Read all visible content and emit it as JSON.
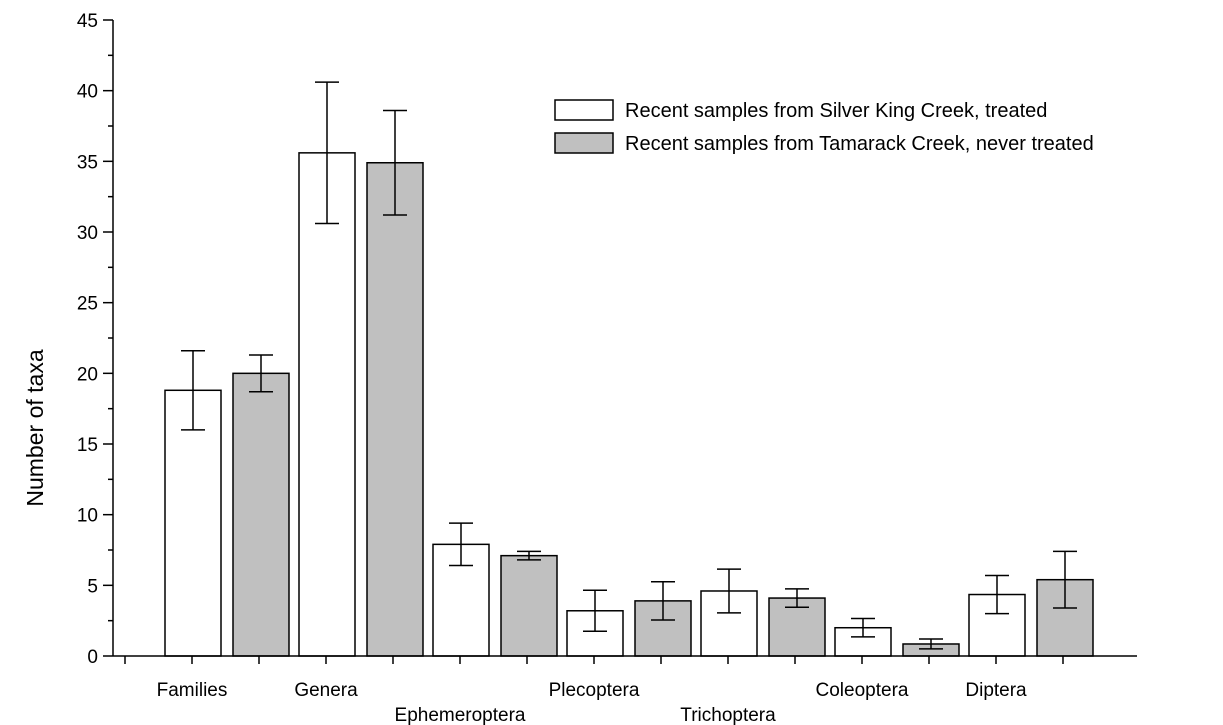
{
  "chart_data": {
    "type": "bar",
    "title": "",
    "xlabel": "",
    "ylabel": "Number of taxa",
    "ylim": [
      0,
      45
    ],
    "yticks": [
      0,
      5,
      10,
      15,
      20,
      25,
      30,
      35,
      40,
      45
    ],
    "grid": false,
    "legend_position": "top-right",
    "categories": [
      "Families",
      "Genera",
      "Ephemeroptera",
      "Plecoptera",
      "Trichoptera",
      "Coleoptera",
      "Diptera"
    ],
    "series": [
      {
        "name": "Recent samples from Silver King Creek, treated",
        "color": "#ffffff",
        "values": [
          18.8,
          35.6,
          7.9,
          3.2,
          4.6,
          2.0,
          4.35
        ],
        "error": [
          2.8,
          5.0,
          1.5,
          1.45,
          1.55,
          0.65,
          1.35
        ]
      },
      {
        "name": "Recent samples from Tamarack Creek, never treated",
        "color": "#c0c0c0",
        "values": [
          20.0,
          34.9,
          7.1,
          3.9,
          4.1,
          0.85,
          5.4
        ],
        "error": [
          1.3,
          3.7,
          0.3,
          1.35,
          0.65,
          0.35,
          2.0
        ]
      }
    ]
  }
}
